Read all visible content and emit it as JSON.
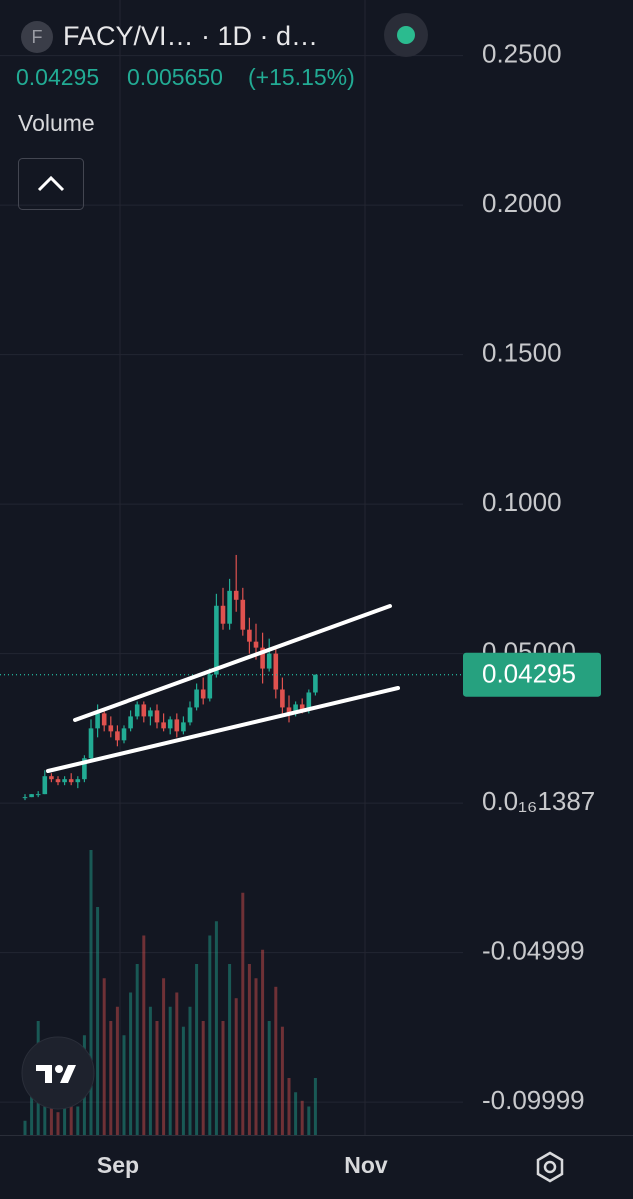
{
  "header": {
    "symbol": "FACY/VI… · 1D · d…",
    "icon": "F",
    "last": "0.04295",
    "change": "0.005650",
    "change_pct": "(+15.15%)",
    "volume_label": "Volume"
  },
  "chart_data": {
    "type": "candlestick",
    "up_color": "#22ab94",
    "down_color": "#e0524f",
    "open": [
      0.002,
      0.002,
      0.003,
      0.003,
      0.009,
      0.008,
      0.007,
      0.008,
      0.007,
      0.008,
      0.015,
      0.025,
      0.03,
      0.026,
      0.024,
      0.021,
      0.025,
      0.029,
      0.033,
      0.029,
      0.031,
      0.027,
      0.025,
      0.028,
      0.024,
      0.027,
      0.032,
      0.038,
      0.035,
      0.043,
      0.066,
      0.06,
      0.071,
      0.068,
      0.058,
      0.054,
      0.052,
      0.045,
      0.05,
      0.038,
      0.032,
      0.03,
      0.033,
      0.031,
      0.037
    ],
    "high": [
      0.003,
      0.003,
      0.004,
      0.011,
      0.01,
      0.009,
      0.009,
      0.01,
      0.009,
      0.016,
      0.028,
      0.033,
      0.031,
      0.029,
      0.026,
      0.026,
      0.031,
      0.034,
      0.034,
      0.032,
      0.033,
      0.03,
      0.029,
      0.03,
      0.029,
      0.034,
      0.04,
      0.042,
      0.045,
      0.07,
      0.072,
      0.075,
      0.083,
      0.072,
      0.062,
      0.06,
      0.057,
      0.055,
      0.052,
      0.042,
      0.036,
      0.034,
      0.035,
      0.038,
      0.043
    ],
    "low": [
      0.001,
      0.002,
      0.002,
      0.003,
      0.007,
      0.006,
      0.006,
      0.006,
      0.005,
      0.007,
      0.014,
      0.022,
      0.024,
      0.022,
      0.019,
      0.02,
      0.024,
      0.028,
      0.027,
      0.026,
      0.025,
      0.024,
      0.023,
      0.022,
      0.023,
      0.026,
      0.031,
      0.033,
      0.034,
      0.042,
      0.058,
      0.058,
      0.064,
      0.056,
      0.05,
      0.048,
      0.04,
      0.044,
      0.035,
      0.03,
      0.027,
      0.029,
      0.03,
      0.03,
      0.036
    ],
    "close": [
      0.002,
      0.003,
      0.003,
      0.009,
      0.008,
      0.007,
      0.008,
      0.007,
      0.008,
      0.015,
      0.025,
      0.03,
      0.026,
      0.024,
      0.021,
      0.025,
      0.029,
      0.033,
      0.029,
      0.031,
      0.027,
      0.025,
      0.028,
      0.024,
      0.027,
      0.032,
      0.038,
      0.035,
      0.043,
      0.066,
      0.06,
      0.071,
      0.068,
      0.058,
      0.054,
      0.052,
      0.045,
      0.05,
      0.038,
      0.032,
      0.03,
      0.033,
      0.031,
      0.037,
      0.04295
    ],
    "volume": [
      5,
      30,
      40,
      10,
      12,
      8,
      15,
      12,
      10,
      35,
      100,
      80,
      55,
      40,
      45,
      35,
      50,
      60,
      70,
      45,
      40,
      55,
      45,
      50,
      38,
      45,
      60,
      40,
      70,
      75,
      40,
      60,
      48,
      85,
      60,
      55,
      65,
      40,
      52,
      38,
      20,
      15,
      12,
      10,
      20
    ],
    "last_price": 0.04295,
    "ylim": [
      -0.111,
      0.2686
    ],
    "yticks": [
      {
        "value": 0.25,
        "label": "0.2500"
      },
      {
        "value": 0.2,
        "label": "0.2000"
      },
      {
        "value": 0.15,
        "label": "0.1500"
      },
      {
        "value": 0.1,
        "label": "0.1000"
      },
      {
        "value": 0.05,
        "label": "0.05000"
      },
      {
        "value": 1.387e-17,
        "label": "0.0₁₆1387"
      },
      -0.04999,
      -0.09999
    ],
    "x_labels": [
      "Sep",
      "Nov"
    ]
  }
}
